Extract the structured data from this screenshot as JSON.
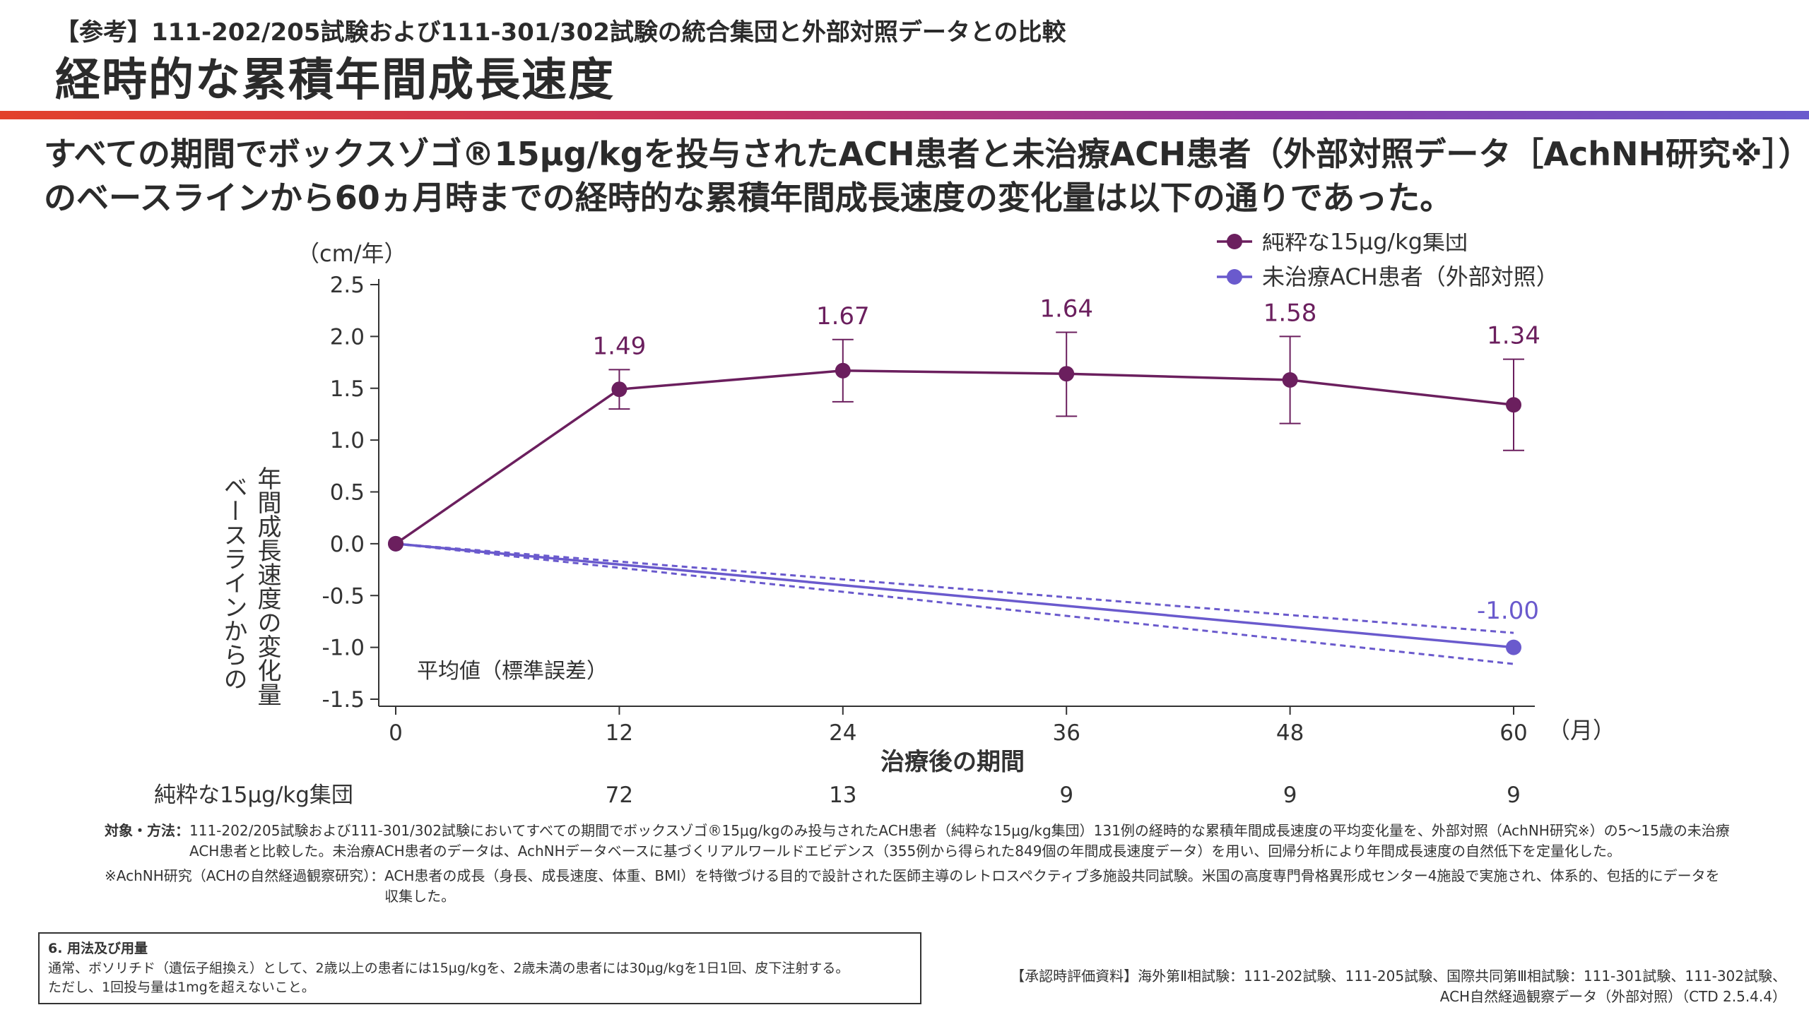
{
  "header": {
    "pre_title": "【参考】111-202/205試験および111-301/302試験の統合集団と外部対照データとの比較",
    "title": "経時的な累積年間成長速度"
  },
  "lead": {
    "line1": "すべての期間でボックスゾゴ®15μg/kgを投与されたACH患者と未治療ACH患者（外部対照データ［AchNH研究※］）",
    "line2": "のベースラインから60ヵ月時までの経時的な累積年間成長速度の変化量は以下の通りであった。"
  },
  "chart_data": {
    "type": "line",
    "xlabel": "治療後の期間",
    "x_unit": "（月）",
    "y_unit": "（cm/年）",
    "ylabel": "ベースラインからの年間成長速度の変化量",
    "ylabel_col1": "ベースラインからの",
    "ylabel_col2": "年間成長速度の変化量",
    "x_ticks": [
      0,
      12,
      24,
      36,
      48,
      60
    ],
    "y_ticks": [
      "2.5",
      "2.0",
      "1.5",
      "1.0",
      "0.5",
      "0.0",
      "-0.5",
      "-1.0",
      "-1.5"
    ],
    "ylim": [
      -1.5,
      2.5
    ],
    "xlim": [
      0,
      60
    ],
    "grid": false,
    "legend_position": "top-right",
    "annotation": "平均値（標準誤差）",
    "series": [
      {
        "name": "純粋な15μg/kg集団",
        "color": "#6b1f5e",
        "x": [
          0,
          12,
          24,
          36,
          48,
          60
        ],
        "y": [
          0.0,
          1.49,
          1.67,
          1.64,
          1.58,
          1.34
        ],
        "err_low": [
          0.0,
          1.3,
          1.37,
          1.23,
          1.16,
          0.9
        ],
        "err_high": [
          0.0,
          1.68,
          1.97,
          2.04,
          2.0,
          1.78
        ],
        "data_labels": [
          "",
          "1.49",
          "1.67",
          "1.64",
          "1.58",
          "1.34"
        ]
      },
      {
        "name": "未治療ACH患者（外部対照）",
        "color": "#6a5acd",
        "x": [
          0,
          60
        ],
        "y": [
          0.0,
          -1.0
        ],
        "ci_upper": [
          0.0,
          -0.86
        ],
        "ci_lower": [
          0.0,
          -1.16
        ],
        "data_labels": [
          "",
          "-1.00"
        ]
      }
    ],
    "n_row": {
      "label": "純粋な15μg/kg集団",
      "x": [
        12,
        24,
        36,
        48,
        60
      ],
      "values": [
        "72",
        "13",
        "9",
        "9",
        "9"
      ]
    }
  },
  "notes": {
    "method_label": "対象・方法：",
    "method_text": "111-202/205試験および111-301/302試験においてすべての期間でボックスゾゴ®15μg/kgのみ投与されたACH患者（純粋な15μg/kg集団）131例の経時的な累積年間成長速度の平均変化量を、外部対照（AchNH研究※）の5〜15歳の未治療ACH患者と比較した。未治療ACH患者のデータは、AchNHデータベースに基づくリアルワールドエビデンス（355例から得られた849個の年間成長速度データ）を用い、回帰分析により年間成長速度の自然低下を定量化した。",
    "achnh_label": "※AchNH研究（ACHの自然経過観察研究）：",
    "achnh_text": "ACH患者の成長（身長、成長速度、体重、BMI）を特徴づける目的で設計された医師主導のレトロスペクティブ多施設共同試験。米国の高度専門骨格異形成センター4施設で実施され、体系的、包括的にデータを収集した。"
  },
  "dosage": {
    "title": "6. 用法及び用量",
    "line1": "通常、ボソリチド（遺伝子組換え）として、2歳以上の患者には15μg/kgを、2歳未満の患者には30μg/kgを1日1回、皮下注射する。",
    "line2": "ただし、1回投与量は1mgを超えないこと。"
  },
  "approval": {
    "line1": "【承認時評価資料】海外第Ⅱ相試験：111-202試験、111-205試験、国際共同第Ⅲ相試験：111-301試験、111-302試験、",
    "line2": "ACH自然経過観察データ（外部対照）（CTD 2.5.4.4）"
  }
}
